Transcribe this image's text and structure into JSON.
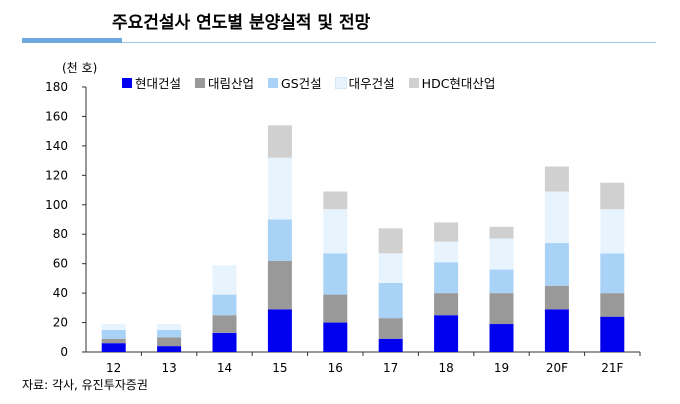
{
  "header": {
    "title": "주요건설사 연도별 분양실적 및 전망",
    "unit": "(천 호)",
    "source": "자료: 각사, 유진투자증권"
  },
  "chart_data": {
    "type": "bar",
    "stacked": true,
    "categories": [
      "12",
      "13",
      "14",
      "15",
      "16",
      "17",
      "18",
      "19",
      "20F",
      "21F"
    ],
    "ylim": [
      0,
      180
    ],
    "yticks": [
      0,
      20,
      40,
      60,
      80,
      100,
      120,
      140,
      160,
      180
    ],
    "legend_position": "top",
    "grid": false,
    "series": [
      {
        "name": "현대건설",
        "color": "#0000ee",
        "values": [
          6,
          4,
          13,
          29,
          20,
          9,
          25,
          19,
          29,
          24
        ]
      },
      {
        "name": "대림산업",
        "color": "#999999",
        "values": [
          3,
          6,
          12,
          33,
          19,
          14,
          15,
          21,
          16,
          16
        ]
      },
      {
        "name": "GS건설",
        "color": "#a9d2f7",
        "values": [
          6,
          5,
          14,
          28,
          28,
          24,
          21,
          16,
          29,
          27
        ]
      },
      {
        "name": "대우건설",
        "color": "#e8f4fd",
        "values": [
          4,
          4,
          20,
          42,
          30,
          20,
          14,
          21,
          35,
          30
        ]
      },
      {
        "name": "HDC현대산업",
        "color": "#d0d0d0",
        "values": [
          0,
          0,
          0,
          22,
          12,
          17,
          13,
          8,
          17,
          18
        ]
      }
    ]
  }
}
